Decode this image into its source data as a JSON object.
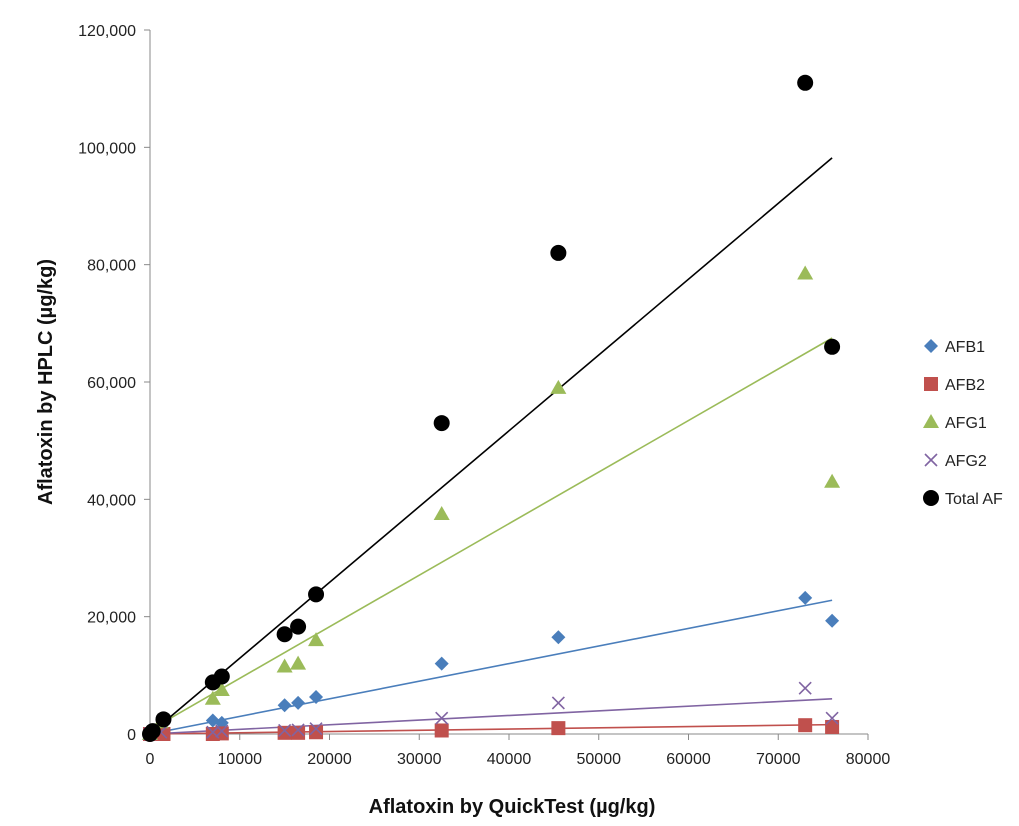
{
  "chart_data": {
    "type": "scatter",
    "title": "",
    "xlabel": "Aflatoxin by QuickTest (µg/kg)",
    "ylabel": "Aflatoxin by HPLC  (µg/kg)",
    "xlim": [
      0,
      80000
    ],
    "ylim": [
      0,
      120000
    ],
    "x_ticks": [
      0,
      10000,
      20000,
      30000,
      40000,
      50000,
      60000,
      70000,
      80000
    ],
    "x_tick_labels": [
      "0",
      "10000",
      "20000",
      "30000",
      "40000",
      "50000",
      "60000",
      "70000",
      "80000"
    ],
    "y_ticks": [
      0,
      20000,
      40000,
      60000,
      80000,
      100000,
      120000
    ],
    "y_tick_labels": [
      "0",
      "20,000",
      "40,000",
      "60,000",
      "80,000",
      "100,000",
      "120,000"
    ],
    "grid": false,
    "legend_position": "right",
    "series": [
      {
        "name": "AFB1",
        "marker": "diamond",
        "color": "#4a7ebb",
        "points": [
          [
            0,
            0
          ],
          [
            200,
            200
          ],
          [
            1200,
            1500
          ],
          [
            7000,
            2300
          ],
          [
            8000,
            1900
          ],
          [
            15000,
            4900
          ],
          [
            16500,
            5300
          ],
          [
            18500,
            6300
          ],
          [
            32500,
            12000
          ],
          [
            45500,
            16500
          ],
          [
            73000,
            23200
          ],
          [
            76000,
            19300
          ]
        ],
        "trendline": [
          [
            0,
            0
          ],
          [
            76000,
            22800
          ]
        ]
      },
      {
        "name": "AFB2",
        "marker": "square",
        "color": "#c0504d",
        "points": [
          [
            0,
            0
          ],
          [
            1500,
            0
          ],
          [
            7000,
            0
          ],
          [
            8000,
            100
          ],
          [
            15000,
            200
          ],
          [
            16500,
            200
          ],
          [
            18500,
            300
          ],
          [
            32500,
            600
          ],
          [
            45500,
            1000
          ],
          [
            73000,
            1500
          ],
          [
            76000,
            1200
          ]
        ],
        "trendline": [
          [
            0,
            0
          ],
          [
            76000,
            1600
          ]
        ]
      },
      {
        "name": "AFG1",
        "marker": "triangle",
        "color": "#9bbb59",
        "points": [
          [
            0,
            0
          ],
          [
            1200,
            2000
          ],
          [
            7000,
            6000
          ],
          [
            8000,
            7500
          ],
          [
            15000,
            11500
          ],
          [
            16500,
            12000
          ],
          [
            18500,
            16000
          ],
          [
            32500,
            37500
          ],
          [
            45500,
            59000
          ],
          [
            73000,
            78500
          ],
          [
            76000,
            43000
          ]
        ],
        "trendline": [
          [
            0,
            700
          ],
          [
            76000,
            67500
          ]
        ]
      },
      {
        "name": "AFG2",
        "marker": "x",
        "color": "#8064a2",
        "points": [
          [
            0,
            0
          ],
          [
            1200,
            300
          ],
          [
            7000,
            300
          ],
          [
            8000,
            500
          ],
          [
            15000,
            600
          ],
          [
            16500,
            700
          ],
          [
            18500,
            900
          ],
          [
            32500,
            2700
          ],
          [
            45500,
            5300
          ],
          [
            73000,
            7800
          ],
          [
            76000,
            2700
          ]
        ],
        "trendline": [
          [
            0,
            0
          ],
          [
            76000,
            6000
          ]
        ]
      },
      {
        "name": "Total AF",
        "marker": "circle",
        "color": "#000000",
        "points": [
          [
            0,
            0
          ],
          [
            300,
            500
          ],
          [
            1500,
            2500
          ],
          [
            7000,
            8800
          ],
          [
            8000,
            9800
          ],
          [
            15000,
            17000
          ],
          [
            16500,
            18300
          ],
          [
            18500,
            23800
          ],
          [
            32500,
            53000
          ],
          [
            45500,
            82000
          ],
          [
            73000,
            111000
          ],
          [
            76000,
            66000
          ]
        ],
        "trendline": [
          [
            0,
            0
          ],
          [
            76000,
            98200
          ]
        ]
      }
    ]
  }
}
